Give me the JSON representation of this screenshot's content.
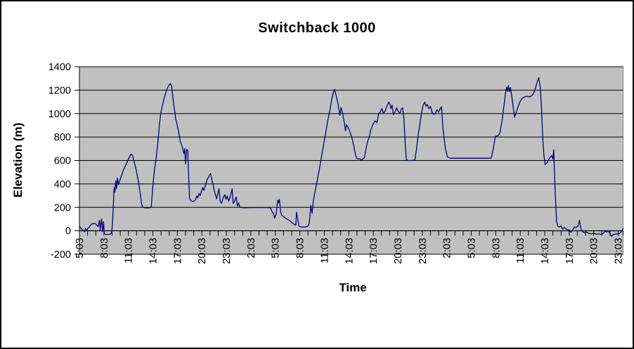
{
  "chart": {
    "title": "Switchback 1000",
    "x_axis_title": "Time",
    "y_axis_title": "Elevation (m)"
  },
  "chart_data": {
    "type": "line",
    "title": "Switchback 1000",
    "xlabel": "Time",
    "ylabel": "Elevation (m)",
    "ylim": [
      -200,
      1400
    ],
    "y_tick_step": 200,
    "y_tick_labels": [
      "1400",
      "1200",
      "1000",
      "800",
      "600",
      "400",
      "200",
      "0",
      "-200"
    ],
    "x_tick_labels": [
      "5:03",
      "8:03",
      "11:03",
      "14:03",
      "17:03",
      "20:03",
      "23:03",
      "2:03",
      "5:03",
      "8:03",
      "11:03",
      "14:03",
      "17:03",
      "20:03",
      "23:03",
      "2:03",
      "5:03",
      "8:03",
      "11:03",
      "14:03",
      "17:03",
      "20:03",
      "23:03"
    ],
    "x_label_every_hours": 3,
    "x_minor_tick_hours": 1,
    "x_range_hours": [
      0,
      66.6
    ],
    "grid": "horizontal",
    "legend": "none",
    "colors": {
      "line": "#000080",
      "plot_bg": "#c0c0c0",
      "grid": "#000000",
      "axis": "#000000",
      "chart_bg": "#ffffff",
      "border": "#000000"
    },
    "series": [
      {
        "name": "Elevation",
        "points": [
          [
            0,
            40
          ],
          [
            0.15,
            25
          ],
          [
            0.3,
            12
          ],
          [
            0.45,
            5
          ],
          [
            0.6,
            -10
          ],
          [
            0.75,
            18
          ],
          [
            0.9,
            5
          ],
          [
            1.05,
            22
          ],
          [
            1.2,
            30
          ],
          [
            1.4,
            52
          ],
          [
            1.6,
            60
          ],
          [
            1.8,
            62
          ],
          [
            2.0,
            58
          ],
          [
            2.15,
            45
          ],
          [
            2.3,
            38
          ],
          [
            2.45,
            88
          ],
          [
            2.55,
            5
          ],
          [
            2.7,
            102
          ],
          [
            2.85,
            -8
          ],
          [
            2.95,
            78
          ],
          [
            3.05,
            -22
          ],
          [
            3.2,
            -30
          ],
          [
            3.5,
            -32
          ],
          [
            3.8,
            -28
          ],
          [
            3.95,
            -15
          ],
          [
            4.05,
            60
          ],
          [
            4.15,
            210
          ],
          [
            4.25,
            370
          ],
          [
            4.35,
            330
          ],
          [
            4.45,
            425
          ],
          [
            4.55,
            360
          ],
          [
            4.65,
            450
          ],
          [
            4.8,
            395
          ],
          [
            4.95,
            430
          ],
          [
            5.15,
            470
          ],
          [
            5.4,
            520
          ],
          [
            5.7,
            565
          ],
          [
            6.0,
            610
          ],
          [
            6.2,
            640
          ],
          [
            6.35,
            655
          ],
          [
            6.5,
            640
          ],
          [
            6.7,
            590
          ],
          [
            6.95,
            520
          ],
          [
            7.2,
            430
          ],
          [
            7.45,
            320
          ],
          [
            7.6,
            235
          ],
          [
            7.75,
            200
          ],
          [
            8.0,
            196
          ],
          [
            8.3,
            195
          ],
          [
            8.6,
            197
          ],
          [
            8.8,
            205
          ],
          [
            9.0,
            380
          ],
          [
            9.2,
            520
          ],
          [
            9.4,
            620
          ],
          [
            9.6,
            750
          ],
          [
            9.8,
            900
          ],
          [
            9.95,
            1000
          ],
          [
            10.2,
            1080
          ],
          [
            10.45,
            1150
          ],
          [
            10.7,
            1205
          ],
          [
            10.95,
            1242
          ],
          [
            11.1,
            1250
          ],
          [
            11.15,
            1257
          ],
          [
            11.3,
            1235
          ],
          [
            11.5,
            1105
          ],
          [
            11.8,
            955
          ],
          [
            12.1,
            865
          ],
          [
            12.35,
            765
          ],
          [
            12.6,
            715
          ],
          [
            12.7,
            688
          ],
          [
            12.8,
            658
          ],
          [
            12.9,
            700
          ],
          [
            13.0,
            572
          ],
          [
            13.15,
            695
          ],
          [
            13.28,
            682
          ],
          [
            13.4,
            430
          ],
          [
            13.5,
            272
          ],
          [
            13.7,
            253
          ],
          [
            13.95,
            250
          ],
          [
            14.2,
            262
          ],
          [
            14.4,
            298
          ],
          [
            14.5,
            280
          ],
          [
            14.65,
            318
          ],
          [
            14.8,
            300
          ],
          [
            14.95,
            338
          ],
          [
            15.1,
            368
          ],
          [
            15.25,
            344
          ],
          [
            15.45,
            392
          ],
          [
            15.65,
            438
          ],
          [
            15.85,
            462
          ],
          [
            16.05,
            488
          ],
          [
            16.25,
            432
          ],
          [
            16.5,
            352
          ],
          [
            16.8,
            272
          ],
          [
            17.0,
            330
          ],
          [
            17.1,
            358
          ],
          [
            17.25,
            250
          ],
          [
            17.4,
            235
          ],
          [
            17.6,
            278
          ],
          [
            17.8,
            308
          ],
          [
            17.95,
            268
          ],
          [
            18.1,
            298
          ],
          [
            18.3,
            252
          ],
          [
            18.5,
            298
          ],
          [
            18.7,
            358
          ],
          [
            18.85,
            232
          ],
          [
            19.0,
            250
          ],
          [
            19.2,
            288
          ],
          [
            19.35,
            212
          ],
          [
            19.5,
            238
          ],
          [
            19.65,
            200
          ],
          [
            20.2,
            197
          ],
          [
            21.0,
            198
          ],
          [
            22.0,
            198
          ],
          [
            23.0,
            198
          ],
          [
            23.4,
            196
          ],
          [
            23.6,
            162
          ],
          [
            23.75,
            150
          ],
          [
            23.9,
            108
          ],
          [
            24.1,
            145
          ],
          [
            24.3,
            262
          ],
          [
            24.4,
            240
          ],
          [
            24.5,
            268
          ],
          [
            24.65,
            160
          ],
          [
            24.8,
            130
          ],
          [
            25.1,
            115
          ],
          [
            25.4,
            100
          ],
          [
            25.7,
            88
          ],
          [
            26.0,
            72
          ],
          [
            26.3,
            55
          ],
          [
            26.5,
            48
          ],
          [
            26.6,
            158
          ],
          [
            26.75,
            95
          ],
          [
            26.9,
            40
          ],
          [
            27.1,
            33
          ],
          [
            27.4,
            32
          ],
          [
            27.7,
            33
          ],
          [
            27.95,
            38
          ],
          [
            28.15,
            62
          ],
          [
            28.35,
            215
          ],
          [
            28.5,
            148
          ],
          [
            28.65,
            255
          ],
          [
            28.8,
            310
          ],
          [
            29.05,
            400
          ],
          [
            29.4,
            530
          ],
          [
            29.7,
            650
          ],
          [
            30.0,
            770
          ],
          [
            30.2,
            845
          ],
          [
            30.45,
            950
          ],
          [
            30.65,
            1015
          ],
          [
            30.9,
            1120
          ],
          [
            31.1,
            1180
          ],
          [
            31.25,
            1207
          ],
          [
            31.45,
            1152
          ],
          [
            31.65,
            1092
          ],
          [
            31.9,
            985
          ],
          [
            32.05,
            1052
          ],
          [
            32.25,
            998
          ],
          [
            32.45,
            920
          ],
          [
            32.6,
            852
          ],
          [
            32.7,
            905
          ],
          [
            32.85,
            890
          ],
          [
            33.0,
            868
          ],
          [
            33.2,
            832
          ],
          [
            33.4,
            788
          ],
          [
            33.6,
            728
          ],
          [
            33.8,
            652
          ],
          [
            33.95,
            618
          ],
          [
            34.15,
            612
          ],
          [
            34.35,
            616
          ],
          [
            34.5,
            601
          ],
          [
            34.7,
            612
          ],
          [
            34.9,
            622
          ],
          [
            35.1,
            700
          ],
          [
            35.3,
            762
          ],
          [
            35.5,
            800
          ],
          [
            35.7,
            862
          ],
          [
            35.85,
            892
          ],
          [
            36.05,
            920
          ],
          [
            36.25,
            938
          ],
          [
            36.45,
            922
          ],
          [
            36.65,
            1000
          ],
          [
            36.85,
            1012
          ],
          [
            37.05,
            1042
          ],
          [
            37.25,
            1002
          ],
          [
            37.45,
            1022
          ],
          [
            37.65,
            1062
          ],
          [
            37.9,
            1098
          ],
          [
            38.05,
            1078
          ],
          [
            38.15,
            1042
          ],
          [
            38.3,
            1072
          ],
          [
            38.45,
            992
          ],
          [
            38.65,
            1012
          ],
          [
            38.85,
            1048
          ],
          [
            39.05,
            1022
          ],
          [
            39.25,
            1000
          ],
          [
            39.45,
            1042
          ],
          [
            39.6,
            1048
          ],
          [
            39.75,
            952
          ],
          [
            39.9,
            752
          ],
          [
            40.05,
            606
          ],
          [
            40.3,
            600
          ],
          [
            40.6,
            600
          ],
          [
            40.9,
            601
          ],
          [
            41.1,
            608
          ],
          [
            41.3,
            702
          ],
          [
            41.5,
            822
          ],
          [
            41.7,
            902
          ],
          [
            41.9,
            1002
          ],
          [
            42.1,
            1072
          ],
          [
            42.3,
            1098
          ],
          [
            42.45,
            1062
          ],
          [
            42.6,
            1078
          ],
          [
            42.8,
            1042
          ],
          [
            43.0,
            1062
          ],
          [
            43.2,
            1012
          ],
          [
            43.4,
            992
          ],
          [
            43.6,
            1002
          ],
          [
            43.8,
            1032
          ],
          [
            44.0,
            1012
          ],
          [
            44.2,
            1042
          ],
          [
            44.35,
            1058
          ],
          [
            44.55,
            860
          ],
          [
            44.85,
            692
          ],
          [
            45.1,
            628
          ],
          [
            45.4,
            620
          ],
          [
            46.0,
            619
          ],
          [
            47.0,
            619
          ],
          [
            48.0,
            619
          ],
          [
            49.0,
            619
          ],
          [
            50.0,
            619
          ],
          [
            50.45,
            620
          ],
          [
            50.7,
            700
          ],
          [
            50.95,
            805
          ],
          [
            51.3,
            812
          ],
          [
            51.5,
            832
          ],
          [
            51.8,
            952
          ],
          [
            52.0,
            1062
          ],
          [
            52.2,
            1182
          ],
          [
            52.32,
            1227
          ],
          [
            52.45,
            1188
          ],
          [
            52.55,
            1237
          ],
          [
            52.68,
            1188
          ],
          [
            52.8,
            1222
          ],
          [
            53.0,
            1130
          ],
          [
            53.3,
            968
          ],
          [
            53.6,
            1030
          ],
          [
            53.9,
            1092
          ],
          [
            54.2,
            1128
          ],
          [
            54.5,
            1142
          ],
          [
            54.8,
            1148
          ],
          [
            55.1,
            1143
          ],
          [
            55.4,
            1152
          ],
          [
            55.55,
            1165
          ],
          [
            55.8,
            1200
          ],
          [
            56.0,
            1252
          ],
          [
            56.27,
            1307
          ],
          [
            56.45,
            1230
          ],
          [
            56.6,
            1050
          ],
          [
            56.75,
            800
          ],
          [
            56.9,
            645
          ],
          [
            57.05,
            565
          ],
          [
            57.3,
            582
          ],
          [
            57.6,
            622
          ],
          [
            57.85,
            642
          ],
          [
            58.0,
            612
          ],
          [
            58.1,
            692
          ],
          [
            58.3,
            300
          ],
          [
            58.45,
            80
          ],
          [
            58.6,
            38
          ],
          [
            58.8,
            32
          ],
          [
            59.0,
            42
          ],
          [
            59.2,
            12
          ],
          [
            59.4,
            28
          ],
          [
            59.6,
            16
          ],
          [
            59.8,
            10
          ],
          [
            60.0,
            6
          ],
          [
            60.2,
            -14
          ],
          [
            60.45,
            12
          ],
          [
            60.65,
            32
          ],
          [
            60.85,
            28
          ],
          [
            61.1,
            42
          ],
          [
            61.25,
            90
          ],
          [
            61.45,
            12
          ],
          [
            61.65,
            -8
          ],
          [
            61.85,
            -16
          ],
          [
            62.1,
            -12
          ],
          [
            62.4,
            -22
          ],
          [
            62.7,
            -26
          ],
          [
            63.0,
            -22
          ],
          [
            63.3,
            -28
          ],
          [
            63.6,
            -26
          ],
          [
            63.9,
            -30
          ],
          [
            64.15,
            -24
          ],
          [
            64.4,
            -2
          ],
          [
            64.6,
            -12
          ],
          [
            64.8,
            2
          ],
          [
            65.0,
            -26
          ],
          [
            65.2,
            -48
          ],
          [
            65.45,
            -30
          ],
          [
            65.7,
            -28
          ],
          [
            66.0,
            -26
          ],
          [
            66.2,
            -20
          ],
          [
            66.4,
            -6
          ],
          [
            66.6,
            22
          ]
        ]
      }
    ]
  }
}
